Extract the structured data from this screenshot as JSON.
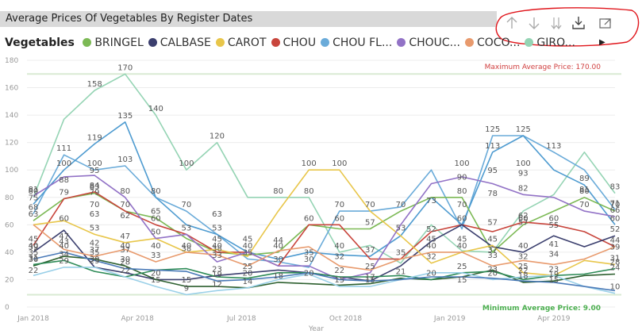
{
  "title": "Average Prices Of Vegetables By Register Dates",
  "toolbar": {
    "icons": [
      "arrow-up-icon",
      "arrow-down-icon",
      "double-arrow-down-icon",
      "expand-hierarchy-icon",
      "focus-mode-icon"
    ]
  },
  "legend": {
    "title": "Vegetables",
    "items": [
      {
        "label": "BRINGEL",
        "color": "#7cb955"
      },
      {
        "label": "CALBASE",
        "color": "#3b3f6e"
      },
      {
        "label": "CAROT",
        "color": "#e8c64a"
      },
      {
        "label": "CHOU",
        "color": "#c8453c"
      },
      {
        "label": "CHOU FL...",
        "color": "#6aabd9"
      },
      {
        "label": "CHOUC...",
        "color": "#9272c6"
      },
      {
        "label": "COCO...",
        "color": "#e89a6d"
      },
      {
        "label": "GIRO...",
        "color": "#95d4b4"
      }
    ],
    "next_glyph": "▶"
  },
  "chart_data": {
    "type": "line",
    "x_ticks": [
      "Jan 2018",
      "Apr 2018",
      "Jul 2018",
      "Oct 2018",
      "Jan 2019",
      "Apr 2019"
    ],
    "xlabel": "Year",
    "ylabel": "",
    "ylim": [
      0,
      180
    ],
    "y_ticks": [
      0,
      20,
      40,
      60,
      80,
      100,
      120,
      140,
      160,
      180
    ],
    "grid": true,
    "reference_lines": {
      "max_label": "Maximum Average Price: 170.00",
      "max_value": 170,
      "min_label": "Minimum Average Price: 9.00",
      "min_value": 9
    },
    "series": [
      {
        "color": "#95d4b4",
        "values": [
          80,
          137,
          158,
          170,
          140,
          100,
          120,
          80,
          80,
          80,
          40,
          45,
          32,
          60,
          41,
          40,
          70,
          82,
          113,
          83
        ]
      },
      {
        "color": "#6aabd9",
        "values": [
          68,
          111,
          100,
          103,
          80,
          70,
          53,
          35,
          33,
          29,
          70,
          70,
          73,
          100,
          57,
          125,
          125,
          113,
          100,
          71
        ]
      },
      {
        "color": "#4e9bd0",
        "values": [
          75,
          100,
          119,
          135,
          80,
          60,
          53,
          40,
          35,
          40,
          38,
          37,
          52,
          80,
          60,
          113,
          125,
          100,
          89,
          60
        ]
      },
      {
        "color": "#7cb955",
        "values": [
          63,
          79,
          83,
          70,
          65,
          50,
          40,
          38,
          40,
          60,
          57,
          57,
          70,
          80,
          80,
          40,
          60,
          70,
          80,
          70
        ]
      },
      {
        "color": "#c8453c",
        "values": [
          45,
          79,
          84,
          70,
          60,
          53,
          40,
          40,
          30,
          60,
          60,
          35,
          35,
          55,
          60,
          55,
          62,
          60,
          55,
          44
        ]
      },
      {
        "color": "#3b3f6e",
        "values": [
          40,
          56,
          29,
          25,
          20,
          20,
          23,
          25,
          27,
          25,
          22,
          19,
          30,
          48,
          60,
          44,
          40,
          52,
          44,
          52
        ]
      },
      {
        "color": "#e8c64a",
        "values": [
          60,
          63,
          53,
          47,
          50,
          40,
          42,
          37,
          70,
          100,
          100,
          70,
          52,
          32,
          40,
          45,
          25,
          23,
          34,
          31
        ]
      },
      {
        "color": "#9272c6",
        "values": [
          81,
          95,
          96,
          80,
          50,
          53,
          33,
          40,
          30,
          30,
          20,
          25,
          60,
          90,
          95,
          90,
          82,
          80,
          70,
          66
        ]
      },
      {
        "color": "#e89a6d",
        "values": [
          60,
          42,
          37,
          42,
          33,
          40,
          38,
          30,
          41,
          44,
          30,
          27,
          35,
          40,
          40,
          30,
          34,
          31,
          35,
          44
        ]
      },
      {
        "color": "#2c5f2e",
        "values": [
          30,
          37,
          35,
          30,
          20,
          15,
          15,
          14,
          18,
          17,
          16,
          17,
          21,
          20,
          22,
          27,
          18,
          19,
          23,
          24
        ]
      },
      {
        "color": "#2e8b57",
        "values": [
          31,
          34,
          26,
          22,
          27,
          28,
          22,
          21,
          25,
          25,
          22,
          22,
          23,
          20,
          25,
          26,
          20,
          23,
          24,
          28
        ]
      },
      {
        "color": "#9ad0e8",
        "values": [
          23,
          29,
          29,
          22,
          15,
          9,
          12,
          14,
          20,
          24,
          15,
          15,
          20,
          25,
          25,
          20,
          22,
          23,
          15,
          10
        ]
      },
      {
        "color": "#4a7ab8",
        "values": [
          35,
          40,
          34,
          28,
          27,
          26,
          19,
          20,
          22,
          25,
          20,
          19,
          20,
          22,
          22,
          21,
          19,
          18,
          15,
          12
        ]
      }
    ],
    "data_labels": [
      {
        "x": 0,
        "y": 80,
        "text": "80"
      },
      {
        "x": 1,
        "y": 111,
        "text": "111"
      },
      {
        "x": 2,
        "y": 158,
        "text": "158"
      },
      {
        "x": 3,
        "y": 170,
        "text": "170"
      },
      {
        "x": 4,
        "y": 140,
        "text": "140"
      },
      {
        "x": 5,
        "y": 100,
        "text": "100"
      },
      {
        "x": 6,
        "y": 120,
        "text": "120"
      },
      {
        "x": 8,
        "y": 80,
        "text": "80"
      },
      {
        "x": 2,
        "y": 119,
        "text": "119"
      },
      {
        "x": 3,
        "y": 135,
        "text": "135"
      },
      {
        "x": 1,
        "y": 100,
        "text": "100"
      },
      {
        "x": 2,
        "y": 100,
        "text": "100"
      },
      {
        "x": 3,
        "y": 103,
        "text": "103"
      },
      {
        "x": 15,
        "y": 125,
        "text": "125"
      },
      {
        "x": 16,
        "y": 125,
        "text": "125"
      },
      {
        "x": 15,
        "y": 113,
        "text": "113"
      },
      {
        "x": 17,
        "y": 113,
        "text": "113"
      },
      {
        "x": 14,
        "y": 100,
        "text": "100"
      },
      {
        "x": 9,
        "y": 100,
        "text": "100"
      },
      {
        "x": 10,
        "y": 100,
        "text": "100"
      },
      {
        "x": 15,
        "y": 95,
        "text": "95"
      },
      {
        "x": 16,
        "y": 100,
        "text": "100"
      },
      {
        "x": 19,
        "y": 83,
        "text": "83"
      },
      {
        "x": 18,
        "y": 89,
        "text": "89"
      },
      {
        "x": 14,
        "y": 90,
        "text": "90"
      },
      {
        "x": 16,
        "y": 93,
        "text": "93"
      },
      {
        "x": 14,
        "y": 80,
        "text": "80"
      },
      {
        "x": 15,
        "y": 78,
        "text": "78"
      },
      {
        "x": 16,
        "y": 82,
        "text": "82"
      },
      {
        "x": 18,
        "y": 81,
        "text": "81"
      },
      {
        "x": 18,
        "y": 80,
        "text": "80"
      },
      {
        "x": 13,
        "y": 73,
        "text": "73"
      },
      {
        "x": 0,
        "y": 81,
        "text": "81"
      },
      {
        "x": 1,
        "y": 88,
        "text": "88"
      },
      {
        "x": 2,
        "y": 95,
        "text": "95"
      },
      {
        "x": 2,
        "y": 83,
        "text": "83"
      },
      {
        "x": 1,
        "y": 79,
        "text": "79"
      },
      {
        "x": 2,
        "y": 84,
        "text": "84"
      },
      {
        "x": 3,
        "y": 80,
        "text": "80"
      },
      {
        "x": 4,
        "y": 80,
        "text": "80"
      },
      {
        "x": 0,
        "y": 75,
        "text": "75"
      },
      {
        "x": 0,
        "y": 68,
        "text": "68"
      },
      {
        "x": 0,
        "y": 63,
        "text": "63"
      },
      {
        "x": 1,
        "y": 60,
        "text": "60"
      },
      {
        "x": 2,
        "y": 79,
        "text": "79"
      },
      {
        "x": 2,
        "y": 70,
        "text": "70"
      },
      {
        "x": 2,
        "y": 63,
        "text": "63"
      },
      {
        "x": 3,
        "y": 70,
        "text": "70"
      },
      {
        "x": 3,
        "y": 62,
        "text": "62"
      },
      {
        "x": 4,
        "y": 65,
        "text": "65"
      },
      {
        "x": 4,
        "y": 60,
        "text": "60"
      },
      {
        "x": 5,
        "y": 70,
        "text": "70"
      },
      {
        "x": 5,
        "y": 53,
        "text": "53"
      },
      {
        "x": 6,
        "y": 63,
        "text": "63"
      },
      {
        "x": 6,
        "y": 53,
        "text": "53"
      },
      {
        "x": 2,
        "y": 53,
        "text": "53"
      },
      {
        "x": 3,
        "y": 47,
        "text": "47"
      },
      {
        "x": 1,
        "y": 47,
        "text": "47"
      },
      {
        "x": 1,
        "y": 43,
        "text": "43"
      },
      {
        "x": 4,
        "y": 50,
        "text": "50"
      },
      {
        "x": 6,
        "y": 45,
        "text": "45"
      },
      {
        "x": 6,
        "y": 40,
        "text": "40"
      },
      {
        "x": 7,
        "y": 45,
        "text": "45"
      },
      {
        "x": 7,
        "y": 40,
        "text": "40"
      },
      {
        "x": 8,
        "y": 44,
        "text": "44"
      },
      {
        "x": 8,
        "y": 40,
        "text": "40"
      },
      {
        "x": 9,
        "y": 60,
        "text": "60"
      },
      {
        "x": 9,
        "y": 80,
        "text": "80"
      },
      {
        "x": 10,
        "y": 70,
        "text": "70"
      },
      {
        "x": 10,
        "y": 60,
        "text": "60"
      },
      {
        "x": 11,
        "y": 70,
        "text": "70"
      },
      {
        "x": 11,
        "y": 57,
        "text": "57"
      },
      {
        "x": 12,
        "y": 53,
        "text": "53"
      },
      {
        "x": 12,
        "y": 70,
        "text": "70"
      },
      {
        "x": 13,
        "y": 52,
        "text": "52"
      },
      {
        "x": 13,
        "y": 45,
        "text": "45"
      },
      {
        "x": 14,
        "y": 70,
        "text": "70"
      },
      {
        "x": 14,
        "y": 60,
        "text": "60"
      },
      {
        "x": 15,
        "y": 57,
        "text": "57"
      },
      {
        "x": 16,
        "y": 60,
        "text": "60"
      },
      {
        "x": 16,
        "y": 62,
        "text": "62"
      },
      {
        "x": 17,
        "y": 60,
        "text": "60"
      },
      {
        "x": 17,
        "y": 55,
        "text": "55"
      },
      {
        "x": 18,
        "y": 70,
        "text": "70"
      },
      {
        "x": 19,
        "y": 70,
        "text": "70"
      },
      {
        "x": 19,
        "y": 71,
        "text": "71"
      },
      {
        "x": 19,
        "y": 66,
        "text": "66"
      },
      {
        "x": 19,
        "y": 60,
        "text": "60"
      },
      {
        "x": 19,
        "y": 52,
        "text": "52"
      },
      {
        "x": 19,
        "y": 44,
        "text": "44"
      },
      {
        "x": 19,
        "y": 39,
        "text": "39"
      },
      {
        "x": 19,
        "y": 31,
        "text": "31"
      },
      {
        "x": 19,
        "y": 28,
        "text": "28"
      },
      {
        "x": 19,
        "y": 24,
        "text": "24"
      },
      {
        "x": 19,
        "y": 10,
        "text": "10"
      },
      {
        "x": 0,
        "y": 45,
        "text": "45"
      },
      {
        "x": 0,
        "y": 40,
        "text": "40"
      },
      {
        "x": 0,
        "y": 39,
        "text": "39"
      },
      {
        "x": 0,
        "y": 35,
        "text": "35"
      },
      {
        "x": 0,
        "y": 31,
        "text": "31"
      },
      {
        "x": 0,
        "y": 30,
        "text": "30"
      },
      {
        "x": 0,
        "y": 22,
        "text": "22"
      },
      {
        "x": 1,
        "y": 40,
        "text": "40"
      },
      {
        "x": 1,
        "y": 34,
        "text": "34"
      },
      {
        "x": 1,
        "y": 29,
        "text": "29"
      },
      {
        "x": 2,
        "y": 42,
        "text": "42"
      },
      {
        "x": 2,
        "y": 37,
        "text": "37"
      },
      {
        "x": 2,
        "y": 30,
        "text": "30"
      },
      {
        "x": 2,
        "y": 29,
        "text": "29"
      },
      {
        "x": 2,
        "y": 35,
        "text": "35"
      },
      {
        "x": 3,
        "y": 37,
        "text": "37"
      },
      {
        "x": 3,
        "y": 40,
        "text": "40"
      },
      {
        "x": 3,
        "y": 28,
        "text": "28"
      },
      {
        "x": 3,
        "y": 22,
        "text": "22"
      },
      {
        "x": 3,
        "y": 30,
        "text": "30"
      },
      {
        "x": 4,
        "y": 40,
        "text": "40"
      },
      {
        "x": 4,
        "y": 33,
        "text": "33"
      },
      {
        "x": 4,
        "y": 20,
        "text": "20"
      },
      {
        "x": 4,
        "y": 15,
        "text": "15"
      },
      {
        "x": 5,
        "y": 40,
        "text": "40"
      },
      {
        "x": 5,
        "y": 38,
        "text": "38"
      },
      {
        "x": 5,
        "y": 15,
        "text": "15"
      },
      {
        "x": 5,
        "y": 9,
        "text": "9"
      },
      {
        "x": 6,
        "y": 38,
        "text": "38"
      },
      {
        "x": 6,
        "y": 33,
        "text": "33"
      },
      {
        "x": 6,
        "y": 23,
        "text": "23"
      },
      {
        "x": 6,
        "y": 19,
        "text": "19"
      },
      {
        "x": 6,
        "y": 12,
        "text": "12"
      },
      {
        "x": 7,
        "y": 35,
        "text": "35"
      },
      {
        "x": 7,
        "y": 25,
        "text": "25"
      },
      {
        "x": 7,
        "y": 20,
        "text": "20"
      },
      {
        "x": 7,
        "y": 14,
        "text": "14"
      },
      {
        "x": 8,
        "y": 30,
        "text": "30"
      },
      {
        "x": 8,
        "y": 18,
        "text": "18"
      },
      {
        "x": 9,
        "y": 35,
        "text": "35"
      },
      {
        "x": 9,
        "y": 30,
        "text": "30"
      },
      {
        "x": 9,
        "y": 20,
        "text": "20"
      },
      {
        "x": 10,
        "y": 40,
        "text": "40"
      },
      {
        "x": 10,
        "y": 32,
        "text": "32"
      },
      {
        "x": 10,
        "y": 22,
        "text": "22"
      },
      {
        "x": 10,
        "y": 15,
        "text": "15"
      },
      {
        "x": 11,
        "y": 37,
        "text": "37"
      },
      {
        "x": 11,
        "y": 25,
        "text": "25"
      },
      {
        "x": 11,
        "y": 17,
        "text": "17"
      },
      {
        "x": 11,
        "y": 15,
        "text": "15"
      },
      {
        "x": 12,
        "y": 35,
        "text": "35"
      },
      {
        "x": 12,
        "y": 21,
        "text": "21"
      },
      {
        "x": 13,
        "y": 40,
        "text": "40"
      },
      {
        "x": 13,
        "y": 32,
        "text": "32"
      },
      {
        "x": 13,
        "y": 20,
        "text": "20"
      },
      {
        "x": 14,
        "y": 45,
        "text": "45"
      },
      {
        "x": 14,
        "y": 40,
        "text": "40"
      },
      {
        "x": 14,
        "y": 25,
        "text": "25"
      },
      {
        "x": 14,
        "y": 15,
        "text": "15"
      },
      {
        "x": 15,
        "y": 45,
        "text": "45"
      },
      {
        "x": 15,
        "y": 37,
        "text": "37"
      },
      {
        "x": 15,
        "y": 33,
        "text": "33"
      },
      {
        "x": 15,
        "y": 23,
        "text": "23"
      },
      {
        "x": 15,
        "y": 20,
        "text": "20"
      },
      {
        "x": 16,
        "y": 40,
        "text": "40"
      },
      {
        "x": 16,
        "y": 32,
        "text": "32"
      },
      {
        "x": 16,
        "y": 25,
        "text": "25"
      },
      {
        "x": 16,
        "y": 22,
        "text": "22"
      },
      {
        "x": 16,
        "y": 18,
        "text": "18"
      },
      {
        "x": 17,
        "y": 41,
        "text": "41"
      },
      {
        "x": 17,
        "y": 34,
        "text": "34"
      },
      {
        "x": 17,
        "y": 23,
        "text": "23"
      },
      {
        "x": 17,
        "y": 19,
        "text": "19"
      },
      {
        "x": 17,
        "y": 15,
        "text": "15"
      },
      {
        "x": 16,
        "y": 57,
        "text": "57"
      }
    ]
  }
}
